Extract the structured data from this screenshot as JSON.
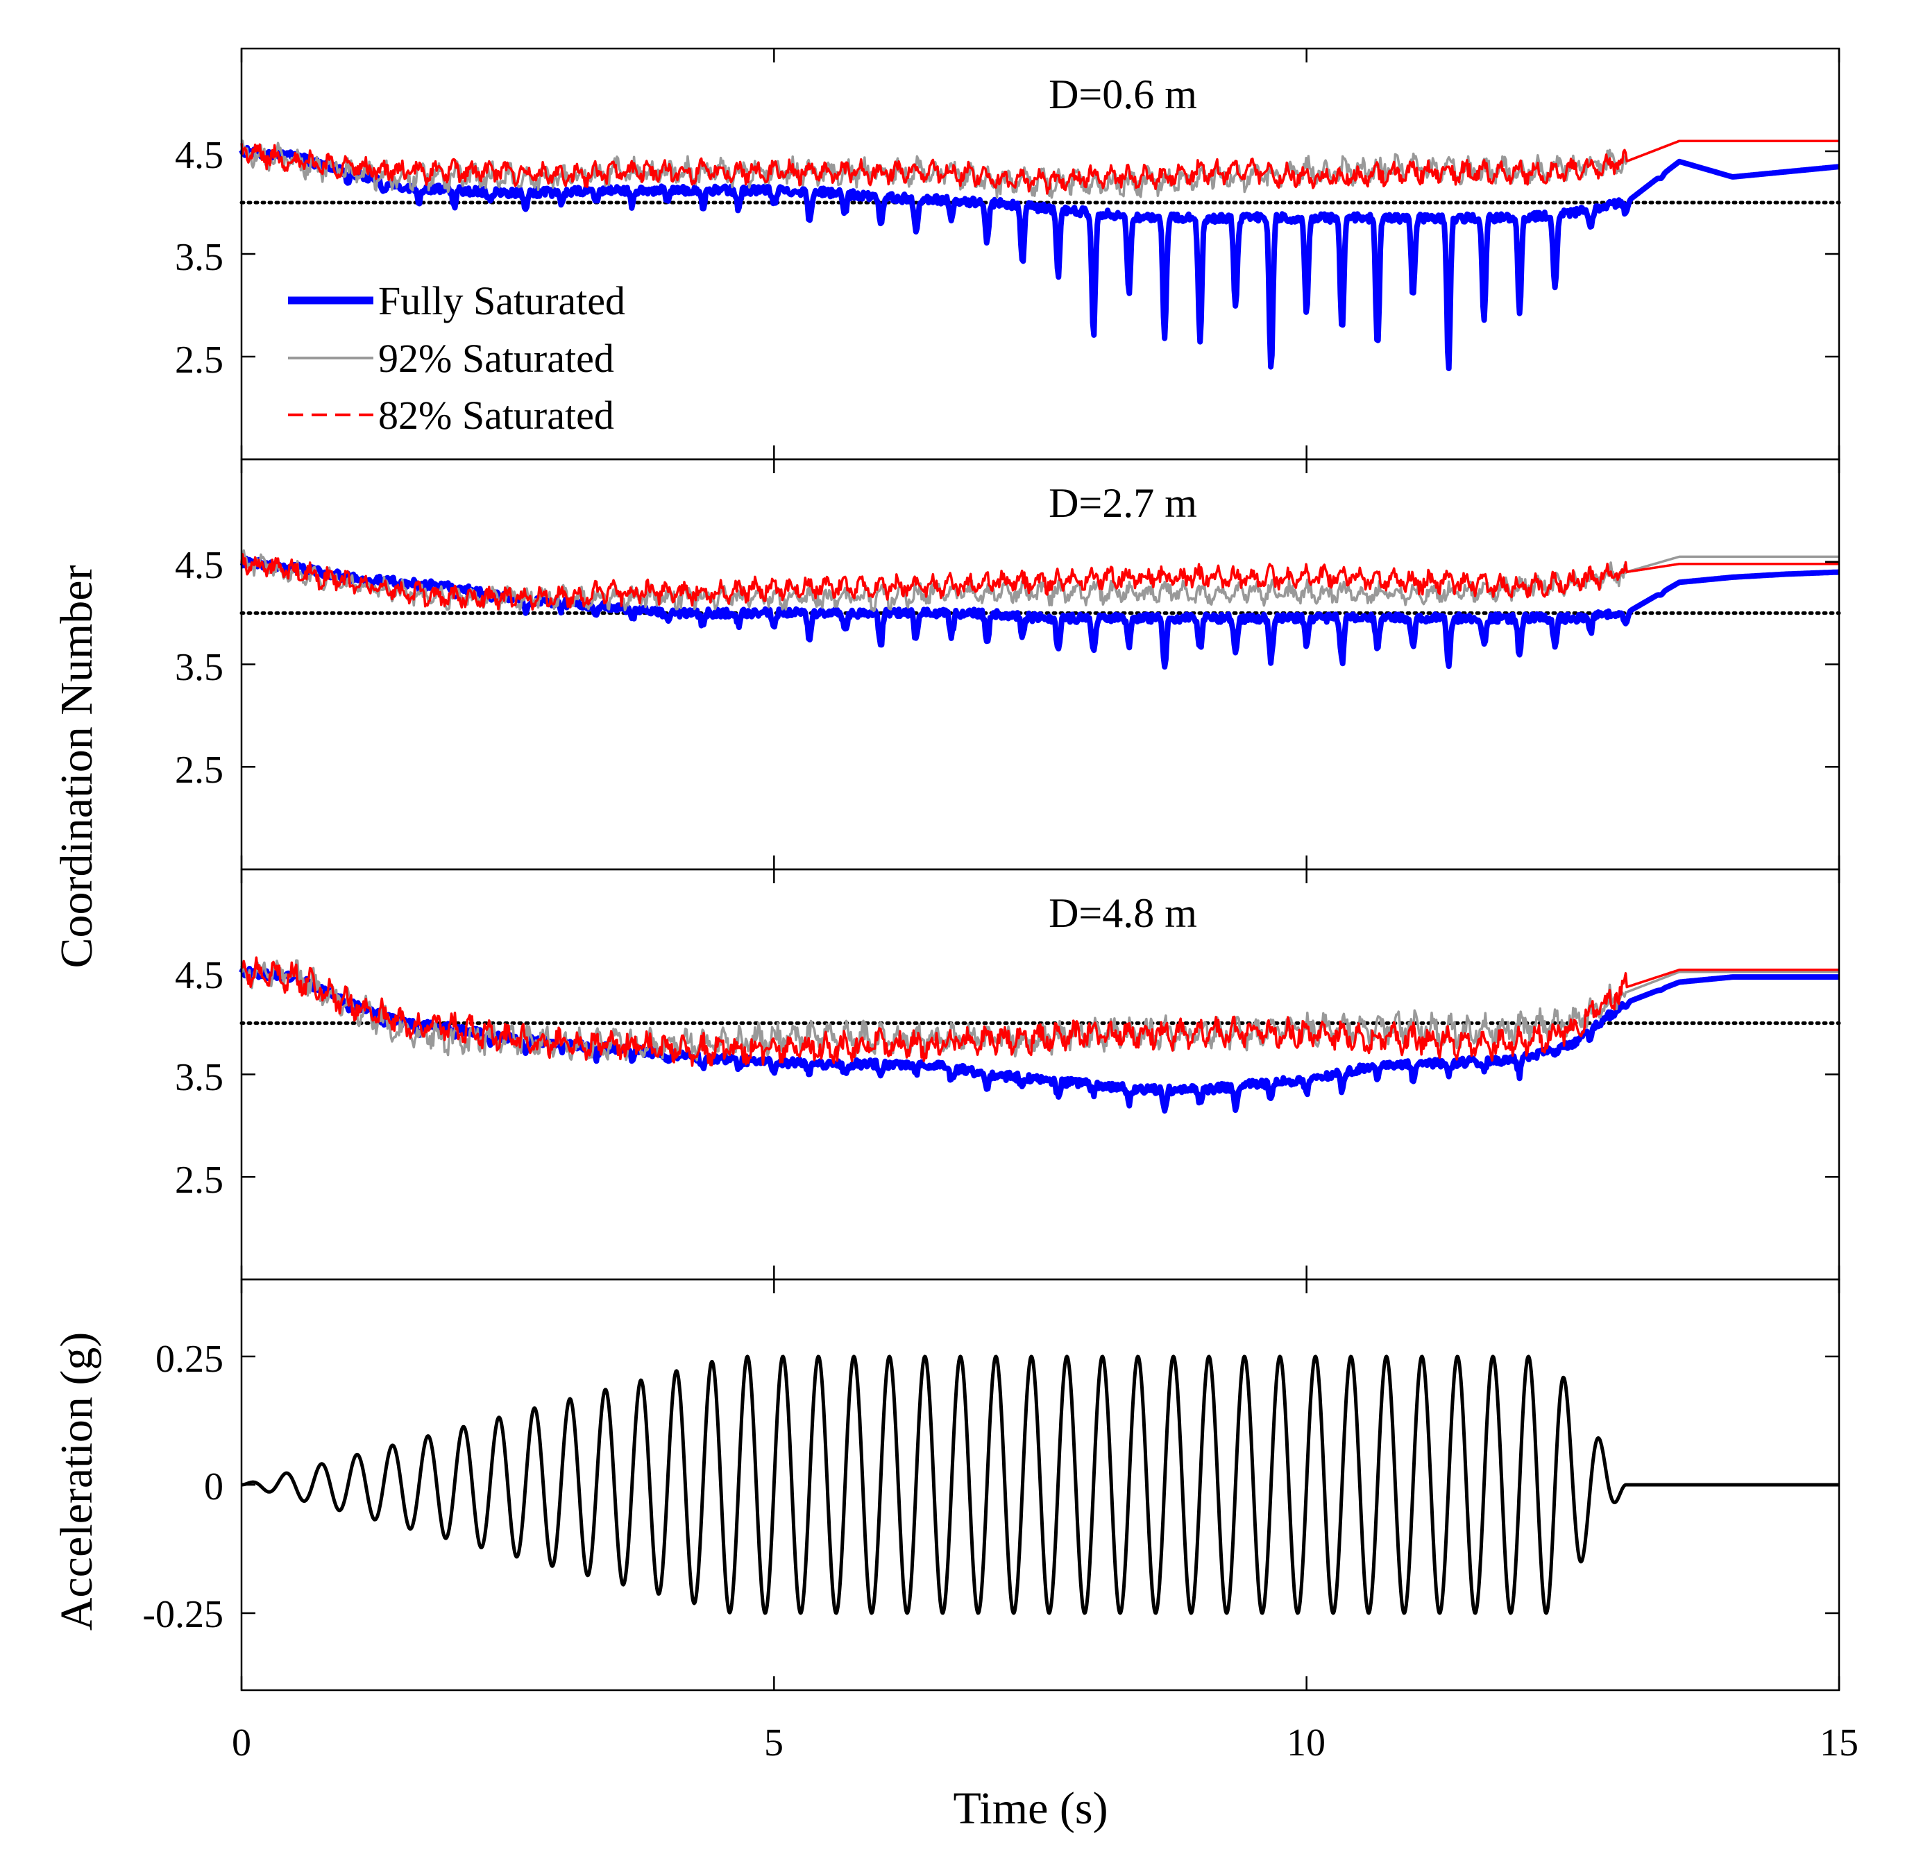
{
  "chart_data": {
    "type": "line",
    "layout": "four vertically stacked panels sharing the Time axis",
    "shared_x": {
      "label": "Time (s)",
      "range": [
        0,
        15
      ],
      "ticks": [
        0,
        5,
        10,
        15
      ],
      "tick_labels": [
        "0",
        "5",
        "10",
        "15"
      ]
    },
    "coordination_ylabel": "Coordination Number",
    "legend": {
      "location": "top-left of first panel",
      "entries": [
        {
          "name": "Fully Saturated",
          "color": "#0000ff",
          "style": "solid-thick"
        },
        {
          "name": "92% Saturated",
          "color": "#999999",
          "style": "solid-thin"
        },
        {
          "name": "82% Saturated",
          "color": "#ff0000",
          "style": "dashed"
        }
      ]
    },
    "reference_line": {
      "y": 4,
      "style": "dotted",
      "color": "#000000"
    },
    "panels": [
      {
        "title": "D=0.6 m",
        "ylim": [
          1.5,
          5.5
        ],
        "yticks": [
          2.5,
          3.5,
          4.5
        ],
        "ytick_labels": [
          "2.5",
          "3.5",
          "4.5"
        ],
        "series": [
          {
            "name": "Fully Saturated",
            "x": [
              0,
              0.5,
              1,
              1.5,
              2,
              2.5,
              3,
              3.5,
              4,
              4.5,
              5,
              5.5,
              6,
              6.5,
              7,
              7.5,
              8,
              8.5,
              9,
              9.5,
              10,
              10.5,
              11,
              11.5,
              12,
              12.5,
              13,
              13.5,
              14,
              14.5,
              15
            ],
            "base": [
              4.5,
              4.45,
              4.3,
              4.15,
              4.12,
              4.1,
              4.1,
              4.12,
              4.12,
              4.12,
              4.12,
              4.1,
              4.05,
              4.03,
              4.0,
              3.95,
              3.9,
              3.85,
              3.85,
              3.85,
              3.85,
              3.85,
              3.85,
              3.85,
              3.85,
              3.9,
              4.0,
              4.4,
              4.25,
              4.3,
              4.35
            ],
            "dip": [
              0,
              0,
              0.12,
              0.18,
              0.15,
              0.15,
              0.15,
              0.15,
              0.2,
              0.2,
              0.25,
              0.3,
              0.35,
              0.35,
              0.4,
              0.9,
              1.2,
              1.3,
              1.45,
              1.5,
              1.5,
              1.4,
              1.4,
              1.55,
              1.3,
              0.5,
              0.1,
              0,
              0,
              0,
              0
            ]
          },
          {
            "name": "92% Saturated",
            "x": [
              0,
              0.5,
              1,
              1.5,
              2,
              2.5,
              3,
              3.5,
              4,
              4.5,
              5,
              5.5,
              6,
              6.5,
              7,
              7.5,
              8,
              8.5,
              9,
              9.5,
              10,
              10.5,
              11,
              11.5,
              12,
              12.5,
              13,
              13.5,
              14,
              14.5,
              15
            ],
            "base": [
              4.5,
              4.4,
              4.3,
              4.25,
              4.25,
              4.25,
              4.25,
              4.3,
              4.3,
              4.3,
              4.3,
              4.3,
              4.3,
              4.3,
              4.2,
              4.2,
              4.2,
              4.2,
              4.25,
              4.25,
              4.3,
              4.3,
              4.35,
              4.3,
              4.3,
              4.35,
              4.4,
              4.6,
              4.6,
              4.6,
              4.6
            ],
            "amp": 0.12
          },
          {
            "name": "82% Saturated",
            "x": [
              0,
              0.5,
              1,
              1.5,
              2,
              2.5,
              3,
              3.5,
              4,
              4.5,
              5,
              5.5,
              6,
              6.5,
              7,
              7.5,
              8,
              8.5,
              9,
              9.5,
              10,
              10.5,
              11,
              11.5,
              12,
              12.5,
              13,
              13.5,
              14,
              14.5,
              15
            ],
            "base": [
              4.5,
              4.4,
              4.35,
              4.3,
              4.3,
              4.3,
              4.25,
              4.3,
              4.3,
              4.3,
              4.3,
              4.3,
              4.3,
              4.3,
              4.25,
              4.2,
              4.25,
              4.25,
              4.3,
              4.3,
              4.25,
              4.25,
              4.3,
              4.3,
              4.3,
              4.3,
              4.4,
              4.6,
              4.6,
              4.6,
              4.6
            ],
            "amp": 0.1
          }
        ]
      },
      {
        "title": "D=2.7 m",
        "ylim": [
          1.5,
          5.5
        ],
        "yticks": [
          2.5,
          3.5,
          4.5
        ],
        "ytick_labels": [
          "2.5",
          "3.5",
          "4.5"
        ],
        "series": [
          {
            "name": "Fully Saturated",
            "x": [
              0,
              0.5,
              1,
              1.5,
              2,
              2.5,
              3,
              3.5,
              4,
              4.5,
              5,
              5.5,
              6,
              6.5,
              7,
              7.5,
              8,
              8.5,
              9,
              9.5,
              10,
              10.5,
              11,
              11.5,
              12,
              12.5,
              13,
              13.5,
              14,
              14.5,
              15
            ],
            "base": [
              4.5,
              4.45,
              4.35,
              4.3,
              4.25,
              4.15,
              4.1,
              4.05,
              4.0,
              4.0,
              4.0,
              4.0,
              4.0,
              4.0,
              4.0,
              3.95,
              3.95,
              3.95,
              3.95,
              3.95,
              3.95,
              3.95,
              3.95,
              3.95,
              3.95,
              3.95,
              4.0,
              4.3,
              4.35,
              4.38,
              4.4
            ],
            "dip": [
              0,
              0,
              0,
              0.05,
              0.08,
              0.1,
              0.1,
              0.1,
              0.15,
              0.15,
              0.2,
              0.3,
              0.35,
              0.35,
              0.3,
              0.3,
              0.4,
              0.45,
              0.5,
              0.45,
              0.45,
              0.45,
              0.4,
              0.5,
              0.4,
              0.3,
              0.1,
              0,
              0,
              0,
              0
            ]
          },
          {
            "name": "92% Saturated",
            "x": [
              0,
              0.5,
              1,
              1.5,
              2,
              2.5,
              3,
              3.5,
              4,
              4.5,
              5,
              5.5,
              6,
              6.5,
              7,
              7.5,
              8,
              8.5,
              9,
              9.5,
              10,
              10.5,
              11,
              11.5,
              12,
              12.5,
              13,
              13.5,
              14,
              14.5,
              15
            ],
            "base": [
              4.5,
              4.4,
              4.3,
              4.2,
              4.15,
              4.15,
              4.15,
              4.15,
              4.15,
              4.15,
              4.15,
              4.15,
              4.15,
              4.2,
              4.2,
              4.2,
              4.2,
              4.2,
              4.2,
              4.2,
              4.2,
              4.2,
              4.2,
              4.2,
              4.25,
              4.3,
              4.4,
              4.55,
              4.55,
              4.55,
              4.55
            ],
            "amp": 0.1
          },
          {
            "name": "82% Saturated",
            "x": [
              0,
              0.5,
              1,
              1.5,
              2,
              2.5,
              3,
              3.5,
              4,
              4.5,
              5,
              5.5,
              6,
              6.5,
              7,
              7.5,
              8,
              8.5,
              9,
              9.5,
              10,
              10.5,
              11,
              11.5,
              12,
              12.5,
              13,
              13.5,
              14,
              14.5,
              15
            ],
            "base": [
              4.5,
              4.4,
              4.3,
              4.2,
              4.15,
              4.15,
              4.15,
              4.2,
              4.2,
              4.2,
              4.25,
              4.25,
              4.25,
              4.25,
              4.3,
              4.3,
              4.35,
              4.35,
              4.35,
              4.35,
              4.35,
              4.35,
              4.3,
              4.3,
              4.25,
              4.3,
              4.4,
              4.48,
              4.48,
              4.48,
              4.48
            ],
            "amp": 0.1
          }
        ]
      },
      {
        "title": "D=4.8 m",
        "ylim": [
          1.5,
          5.5
        ],
        "yticks": [
          2.5,
          3.5,
          4.5
        ],
        "ytick_labels": [
          "2.5",
          "3.5",
          "4.5"
        ],
        "series": [
          {
            "name": "Fully Saturated",
            "x": [
              0,
              0.5,
              1,
              1.5,
              2,
              2.5,
              3,
              3.5,
              4,
              4.5,
              5,
              5.5,
              6,
              6.5,
              7,
              7.5,
              8,
              8.5,
              9,
              9.5,
              10,
              10.5,
              11,
              11.5,
              12,
              12.5,
              13,
              13.5,
              14,
              14.5,
              15
            ],
            "base": [
              4.5,
              4.45,
              4.2,
              4.0,
              3.95,
              3.85,
              3.8,
              3.75,
              3.7,
              3.65,
              3.62,
              3.6,
              3.6,
              3.6,
              3.5,
              3.45,
              3.4,
              3.35,
              3.35,
              3.4,
              3.45,
              3.55,
              3.6,
              3.62,
              3.65,
              3.8,
              4.2,
              4.4,
              4.45,
              4.45,
              4.45
            ],
            "dip": [
              0,
              0,
              0.05,
              0.1,
              0.1,
              0.1,
              0.1,
              0.1,
              0.1,
              0.12,
              0.12,
              0.12,
              0.15,
              0.15,
              0.15,
              0.15,
              0.15,
              0.2,
              0.2,
              0.2,
              0.2,
              0.15,
              0.15,
              0.15,
              0.15,
              0.1,
              0.05,
              0,
              0,
              0,
              0
            ]
          },
          {
            "name": "92% Saturated",
            "x": [
              0,
              0.5,
              1,
              1.5,
              2,
              2.5,
              3,
              3.5,
              4,
              4.5,
              5,
              5.5,
              6,
              6.5,
              7,
              7.5,
              8,
              8.5,
              9,
              9.5,
              10,
              10.5,
              11,
              11.5,
              12,
              12.5,
              13,
              13.5,
              14,
              14.5,
              15
            ],
            "base": [
              4.5,
              4.45,
              4.2,
              3.9,
              3.85,
              3.85,
              3.8,
              3.8,
              3.8,
              3.8,
              3.85,
              3.85,
              3.85,
              3.85,
              3.85,
              3.85,
              3.9,
              3.9,
              3.9,
              3.9,
              3.95,
              3.95,
              3.95,
              3.9,
              3.95,
              4.0,
              4.3,
              4.5,
              4.5,
              4.5,
              4.5
            ],
            "amp": 0.14
          },
          {
            "name": "82% Saturated",
            "x": [
              0,
              0.5,
              1,
              1.5,
              2,
              2.5,
              3,
              3.5,
              4,
              4.5,
              5,
              5.5,
              6,
              6.5,
              7,
              7.5,
              8,
              8.5,
              9,
              9.5,
              10,
              10.5,
              11,
              11.5,
              12,
              12.5,
              13,
              13.5,
              14,
              14.5,
              15
            ],
            "base": [
              4.5,
              4.45,
              4.2,
              4.0,
              3.95,
              3.85,
              3.8,
              3.8,
              3.75,
              3.75,
              3.75,
              3.75,
              3.8,
              3.8,
              3.85,
              3.85,
              3.9,
              3.9,
              3.9,
              3.9,
              3.9,
              3.85,
              3.85,
              3.8,
              3.8,
              3.95,
              4.35,
              4.52,
              4.52,
              4.52,
              4.52
            ],
            "amp": 0.13
          }
        ]
      },
      {
        "title": "",
        "ylabel": "Acceleration (g)",
        "ylim": [
          -0.4,
          0.4
        ],
        "yticks": [
          -0.25,
          0,
          0.25
        ],
        "ytick_labels": [
          "-0.25",
          "0",
          "0.25"
        ],
        "series": [
          {
            "name": "Input acceleration",
            "color": "#000000",
            "type": "ramped sine",
            "cycles": 39,
            "duration_s": 13,
            "peak_g": 0.25,
            "ramp_up_s": [
              0,
              4.6
            ],
            "ramp_down_s": [
              12.3,
              13
            ],
            "value_after_s": 0
          }
        ]
      }
    ]
  }
}
